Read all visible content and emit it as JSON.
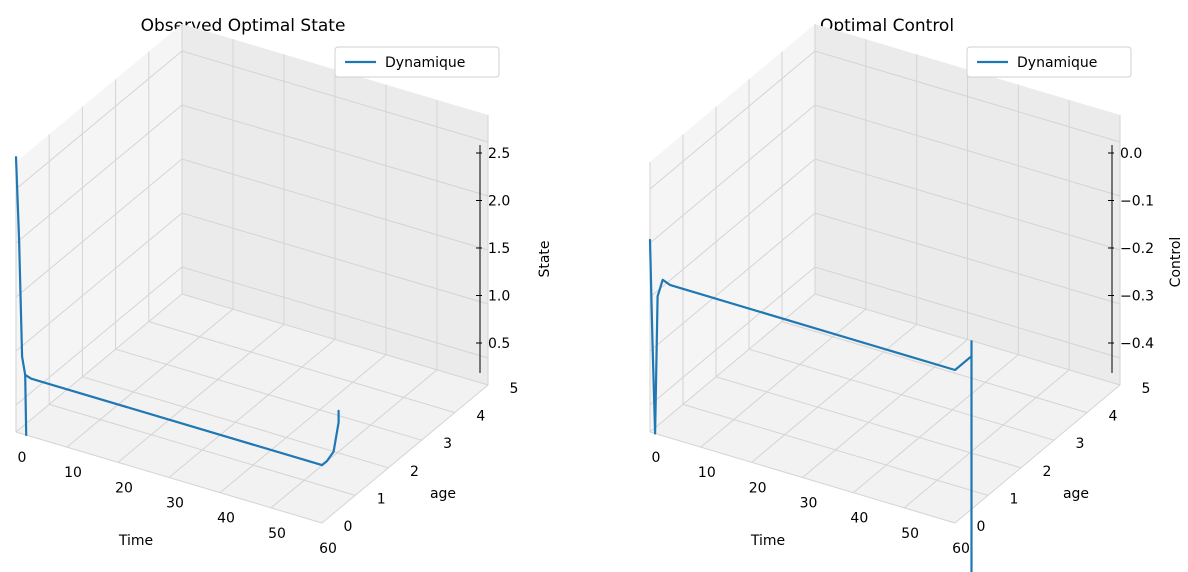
{
  "chart_data": [
    {
      "type": "line3d",
      "title": "Observed Optimal State",
      "xlabel": "Time",
      "ylabel": "age",
      "zlabel": "State",
      "legend": "Dynamique",
      "legend_position": "top-right",
      "grid": true,
      "x_ticks": [
        "0",
        "10",
        "20",
        "30",
        "40",
        "50",
        "60"
      ],
      "y_ticks": [
        "0",
        "1",
        "2",
        "3",
        "4",
        "5"
      ],
      "z_ticks": [
        "0.5",
        "1.0",
        "1.5",
        "2.0",
        "2.5"
      ],
      "xlim": [
        0,
        60
      ],
      "ylim": [
        0,
        5
      ],
      "zlim": [
        0.0,
        2.8
      ],
      "series": [
        {
          "color": "#1f77b4",
          "points": [
            {
              "x": 0,
              "y": 0,
              "z": 2.85
            },
            {
              "x": 0.6,
              "y": 0,
              "z": 2.0
            },
            {
              "x": 1.2,
              "y": 0,
              "z": 0.8
            },
            {
              "x": 1.8,
              "y": 0,
              "z": 0.62
            },
            {
              "x": 3,
              "y": 0,
              "z": 0.6
            },
            {
              "x": 60,
              "y": 0,
              "z": 0.6
            },
            {
              "x": 60,
              "y": 0.15,
              "z": 0.6
            },
            {
              "x": 60,
              "y": 0.35,
              "z": 0.64
            },
            {
              "x": 60,
              "y": 0.5,
              "z": 0.9
            },
            {
              "x": 60,
              "y": 0.5,
              "z": 1.02
            }
          ]
        },
        {
          "color": "#1f77b4",
          "points": [
            {
              "x": 1.8,
              "y": 0,
              "z": 0.62
            },
            {
              "x": 2.0,
              "y": 0,
              "z": 0.0
            }
          ]
        }
      ]
    },
    {
      "type": "line3d",
      "title": "Optimal Control",
      "xlabel": "Time",
      "ylabel": "age",
      "zlabel": "Control",
      "legend": "Dynamique",
      "legend_position": "top-right",
      "grid": true,
      "x_ticks": [
        "0",
        "10",
        "20",
        "30",
        "40",
        "50",
        "60"
      ],
      "y_ticks": [
        "0",
        "1",
        "2",
        "3",
        "4",
        "5"
      ],
      "z_ticks": [
        "0.0",
        "−0.1",
        "−0.2",
        "−0.3",
        "−0.4"
      ],
      "xlim": [
        0,
        60
      ],
      "ylim": [
        0,
        5
      ],
      "zlim": [
        -0.45,
        0.0
      ],
      "series": [
        {
          "color": "#1f77b4",
          "points": [
            {
              "x": 0,
              "y": 0,
              "z": -0.13
            },
            {
              "x": 0.5,
              "y": 0,
              "z": -0.3
            },
            {
              "x": 1.0,
              "y": 0,
              "z": -0.45
            },
            {
              "x": 1.5,
              "y": 0,
              "z": -0.22
            },
            {
              "x": 2.5,
              "y": 0,
              "z": -0.19
            },
            {
              "x": 4,
              "y": 0,
              "z": -0.195
            },
            {
              "x": 60,
              "y": 0,
              "z": -0.195
            },
            {
              "x": 60,
              "y": 0.5,
              "z": -0.195
            },
            {
              "x": 60,
              "y": 0.5,
              "z": -0.17
            },
            {
              "x": 60,
              "y": 0.5,
              "z": -0.6
            }
          ]
        }
      ]
    }
  ]
}
